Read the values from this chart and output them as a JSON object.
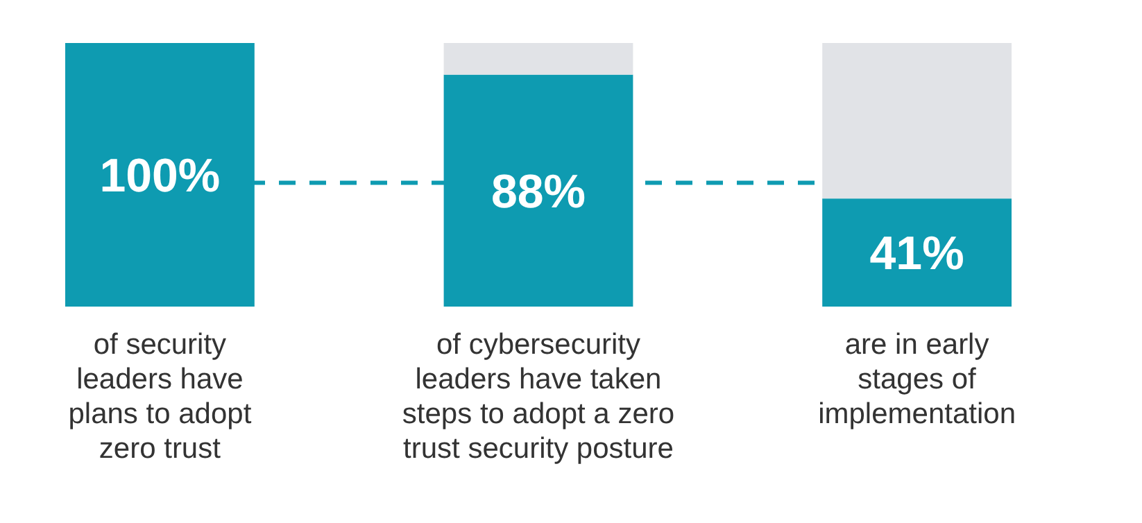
{
  "chart_data": {
    "type": "bar",
    "stacked": true,
    "tick_labels": "x",
    "ylim": [
      0,
      100
    ],
    "categories": [
      "of security\nleaders have\nplans to adopt\nzero trust",
      "of cybersecurity\nleaders have taken\nsteps to adopt a zero\ntrust security posture",
      "are in early\nstages of\nimplementation"
    ],
    "series": [
      {
        "color": "#0e9bb1",
        "values": [
          100,
          88,
          41
        ],
        "value_labels": [
          "100%",
          "88%",
          "41%"
        ]
      },
      {
        "color": "#e1e3e7",
        "values": [
          0,
          12,
          59
        ]
      }
    ],
    "ref_lines": [
      {
        "axis": "y",
        "value": 47,
        "color": "#0e9bb1",
        "line_style": "dashed"
      }
    ]
  }
}
